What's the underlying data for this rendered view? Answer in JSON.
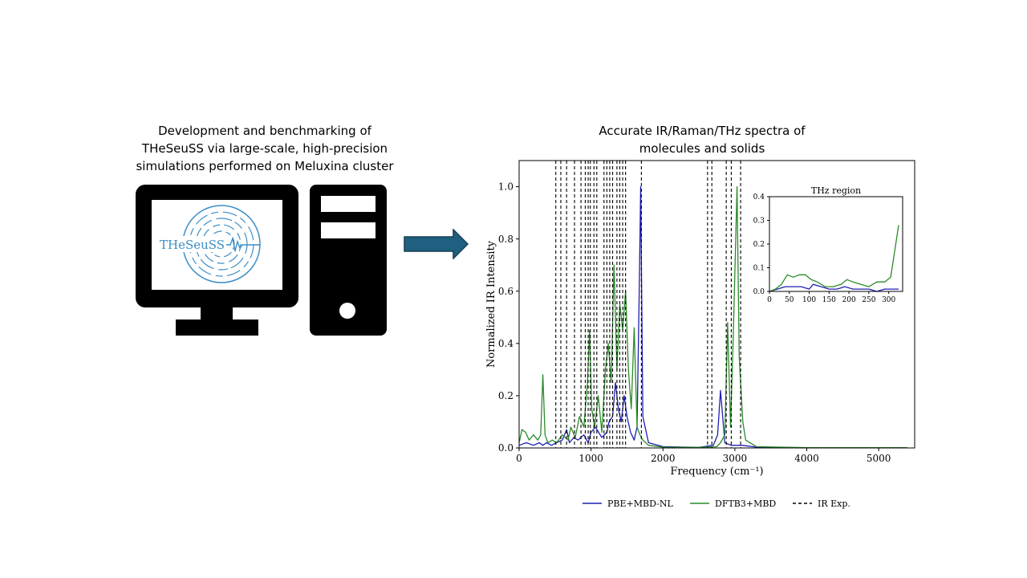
{
  "left_caption": {
    "line1": "Development and benchmarking of",
    "line2": "THeSeuSS via large-scale, high-precision",
    "line3": "simulations performed on Meluxina cluster"
  },
  "right_caption": {
    "line1": "Accurate IR/Raman/THz spectra of",
    "line2": "molecules and solids"
  },
  "logo": {
    "text": "THeSeuSS",
    "color": "#3d8ec6"
  },
  "colors": {
    "pbe": "#1f1fb4",
    "dftb": "#2a8a2a",
    "exp": "#000000",
    "arrow": "#1f5f7f"
  },
  "chart_data": [
    {
      "type": "line",
      "xlabel": "Frequency (cm⁻¹)",
      "ylabel": "Normalized IR Intensity",
      "xlim": [
        0,
        5500
      ],
      "ylim": [
        0,
        1.1
      ],
      "xticks": [
        0,
        1000,
        2000,
        3000,
        4000,
        5000
      ],
      "yticks": [
        0.0,
        0.2,
        0.4,
        0.6,
        0.8,
        1.0
      ],
      "xtick_labels": [
        "0",
        "1000",
        "2000",
        "3000",
        "4000",
        "5000"
      ],
      "ytick_labels": [
        "0.0",
        "0.2",
        "0.4",
        "0.6",
        "0.8",
        "1.0"
      ],
      "legend": "bottom-center",
      "series": [
        {
          "name": "PBE+MBD-NL",
          "color": "#1f1fb4",
          "x": [
            0,
            100,
            200,
            280,
            330,
            380,
            450,
            520,
            600,
            660,
            700,
            760,
            820,
            900,
            960,
            1000,
            1060,
            1150,
            1220,
            1250,
            1300,
            1340,
            1380,
            1420,
            1460,
            1500,
            1550,
            1600,
            1640,
            1670,
            1690,
            1720,
            1800,
            2000,
            2500,
            2700,
            2760,
            2800,
            2860,
            2950,
            3000,
            3050,
            3100,
            3300,
            4000,
            5400
          ],
          "y": [
            0.01,
            0.02,
            0.01,
            0.02,
            0.01,
            0.02,
            0.01,
            0.02,
            0.03,
            0.07,
            0.02,
            0.04,
            0.03,
            0.05,
            0.02,
            0.06,
            0.08,
            0.04,
            0.06,
            0.1,
            0.12,
            0.25,
            0.15,
            0.1,
            0.2,
            0.12,
            0.06,
            0.03,
            0.08,
            0.6,
            1.0,
            0.12,
            0.02,
            0.005,
            0.002,
            0.01,
            0.05,
            0.22,
            0.02,
            0.01,
            0.01,
            0.01,
            0.01,
            0.003,
            0.001,
            0.001
          ]
        },
        {
          "name": "DFTB3+MBD",
          "color": "#2a8a2a",
          "x": [
            0,
            40,
            90,
            140,
            200,
            260,
            300,
            330,
            360,
            400,
            460,
            520,
            600,
            680,
            720,
            780,
            840,
            900,
            950,
            980,
            1010,
            1050,
            1100,
            1150,
            1200,
            1240,
            1280,
            1320,
            1360,
            1400,
            1440,
            1480,
            1520,
            1560,
            1600,
            1640,
            1680,
            1720,
            1800,
            2000,
            2500,
            2750,
            2800,
            2860,
            2900,
            2940,
            2980,
            3030,
            3060,
            3090,
            3110,
            3150,
            3300,
            4000,
            5400
          ],
          "y": [
            0.02,
            0.07,
            0.06,
            0.03,
            0.05,
            0.03,
            0.05,
            0.28,
            0.05,
            0.02,
            0.03,
            0.02,
            0.05,
            0.03,
            0.08,
            0.04,
            0.12,
            0.08,
            0.25,
            0.45,
            0.15,
            0.08,
            0.2,
            0.06,
            0.3,
            0.4,
            0.25,
            0.7,
            0.3,
            0.55,
            0.45,
            0.6,
            0.3,
            0.15,
            0.46,
            0.08,
            0.05,
            0.03,
            0.01,
            0.003,
            0.002,
            0.005,
            0.02,
            0.05,
            0.48,
            0.08,
            0.45,
            1.0,
            0.35,
            0.2,
            0.1,
            0.03,
            0.005,
            0.001,
            0.001
          ]
        },
        {
          "name": "IR Exp.",
          "color": "#000000",
          "style": "dashed",
          "vlines": [
            510,
            580,
            660,
            770,
            860,
            920,
            960,
            990,
            1040,
            1080,
            1180,
            1220,
            1260,
            1300,
            1360,
            1400,
            1440,
            1480,
            1700,
            2620,
            2680,
            2880,
            2950,
            3080
          ]
        }
      ]
    },
    {
      "type": "line",
      "title": "THz region",
      "xlim": [
        0,
        335
      ],
      "ylim": [
        0,
        0.4
      ],
      "xticks": [
        0,
        50,
        100,
        150,
        200,
        250,
        300
      ],
      "yticks": [
        0.0,
        0.1,
        0.2,
        0.3,
        0.4
      ],
      "xtick_labels": [
        "0",
        "50",
        "100",
        "150",
        "200",
        "250",
        "300"
      ],
      "ytick_labels": [
        "0.0",
        "0.1",
        "0.2",
        "0.3",
        "0.4"
      ],
      "series": [
        {
          "name": "PBE+MBD-NL",
          "color": "#1f1fb4",
          "x": [
            0,
            20,
            40,
            60,
            80,
            100,
            110,
            130,
            150,
            170,
            190,
            210,
            230,
            250,
            270,
            290,
            310,
            325
          ],
          "y": [
            0.0,
            0.01,
            0.02,
            0.02,
            0.02,
            0.01,
            0.03,
            0.02,
            0.01,
            0.01,
            0.02,
            0.01,
            0.01,
            0.01,
            0.0,
            0.01,
            0.01,
            0.01
          ]
        },
        {
          "name": "DFTB3+MBD",
          "color": "#2a8a2a",
          "x": [
            0,
            15,
            30,
            45,
            60,
            75,
            90,
            105,
            120,
            140,
            160,
            180,
            195,
            210,
            230,
            250,
            270,
            290,
            305,
            315,
            325
          ],
          "y": [
            0.0,
            0.01,
            0.03,
            0.07,
            0.06,
            0.07,
            0.07,
            0.05,
            0.04,
            0.02,
            0.02,
            0.03,
            0.05,
            0.04,
            0.03,
            0.02,
            0.04,
            0.04,
            0.06,
            0.17,
            0.28
          ]
        }
      ]
    }
  ]
}
